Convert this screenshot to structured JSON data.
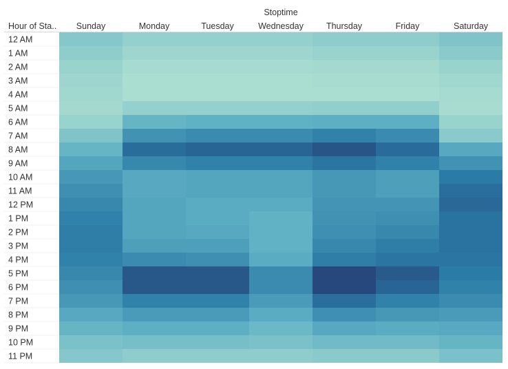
{
  "chart_data": {
    "type": "heatmap",
    "column_title": "Stoptime",
    "row_header": "Hour of Sta..",
    "columns": [
      "Sunday",
      "Monday",
      "Tuesday",
      "Wednesday",
      "Thursday",
      "Friday",
      "Saturday"
    ],
    "rows": [
      "12 AM",
      "1 AM",
      "2 AM",
      "3 AM",
      "4 AM",
      "5 AM",
      "6 AM",
      "7 AM",
      "8 AM",
      "9 AM",
      "10 AM",
      "11 AM",
      "12 PM",
      "1 PM",
      "2 PM",
      "3 PM",
      "4 PM",
      "5 PM",
      "6 PM",
      "7 PM",
      "8 PM",
      "9 PM",
      "10 PM",
      "11 PM"
    ],
    "values": [
      [
        0.18,
        0.12,
        0.12,
        0.12,
        0.14,
        0.14,
        0.2
      ],
      [
        0.14,
        0.08,
        0.08,
        0.08,
        0.1,
        0.1,
        0.16
      ],
      [
        0.1,
        0.05,
        0.05,
        0.05,
        0.06,
        0.06,
        0.1
      ],
      [
        0.08,
        0.03,
        0.03,
        0.03,
        0.04,
        0.04,
        0.07
      ],
      [
        0.07,
        0.03,
        0.03,
        0.03,
        0.03,
        0.03,
        0.05
      ],
      [
        0.06,
        0.12,
        0.12,
        0.12,
        0.13,
        0.13,
        0.04
      ],
      [
        0.1,
        0.3,
        0.33,
        0.33,
        0.34,
        0.34,
        0.1
      ],
      [
        0.2,
        0.52,
        0.56,
        0.56,
        0.62,
        0.56,
        0.16
      ],
      [
        0.3,
        0.75,
        0.8,
        0.8,
        0.9,
        0.76,
        0.38
      ],
      [
        0.4,
        0.58,
        0.62,
        0.62,
        0.7,
        0.62,
        0.52
      ],
      [
        0.48,
        0.38,
        0.4,
        0.4,
        0.48,
        0.44,
        0.66
      ],
      [
        0.54,
        0.38,
        0.4,
        0.4,
        0.48,
        0.44,
        0.74
      ],
      [
        0.58,
        0.4,
        0.36,
        0.36,
        0.5,
        0.5,
        0.78
      ],
      [
        0.62,
        0.4,
        0.36,
        0.32,
        0.52,
        0.54,
        0.72
      ],
      [
        0.64,
        0.4,
        0.38,
        0.32,
        0.54,
        0.58,
        0.72
      ],
      [
        0.64,
        0.44,
        0.44,
        0.32,
        0.58,
        0.64,
        0.72
      ],
      [
        0.62,
        0.56,
        0.54,
        0.36,
        0.64,
        0.7,
        0.7
      ],
      [
        0.58,
        0.88,
        0.88,
        0.56,
        0.98,
        0.86,
        0.66
      ],
      [
        0.54,
        0.88,
        0.88,
        0.56,
        0.98,
        0.8,
        0.62
      ],
      [
        0.48,
        0.62,
        0.62,
        0.46,
        0.74,
        0.62,
        0.56
      ],
      [
        0.38,
        0.46,
        0.46,
        0.36,
        0.54,
        0.48,
        0.46
      ],
      [
        0.3,
        0.34,
        0.34,
        0.28,
        0.38,
        0.36,
        0.38
      ],
      [
        0.22,
        0.24,
        0.24,
        0.22,
        0.26,
        0.26,
        0.3
      ],
      [
        0.18,
        0.14,
        0.14,
        0.14,
        0.16,
        0.16,
        0.22
      ]
    ],
    "color_scale": [
      "#b2e2d2",
      "#5eb0c4",
      "#2a7aa6",
      "#27457a"
    ]
  }
}
